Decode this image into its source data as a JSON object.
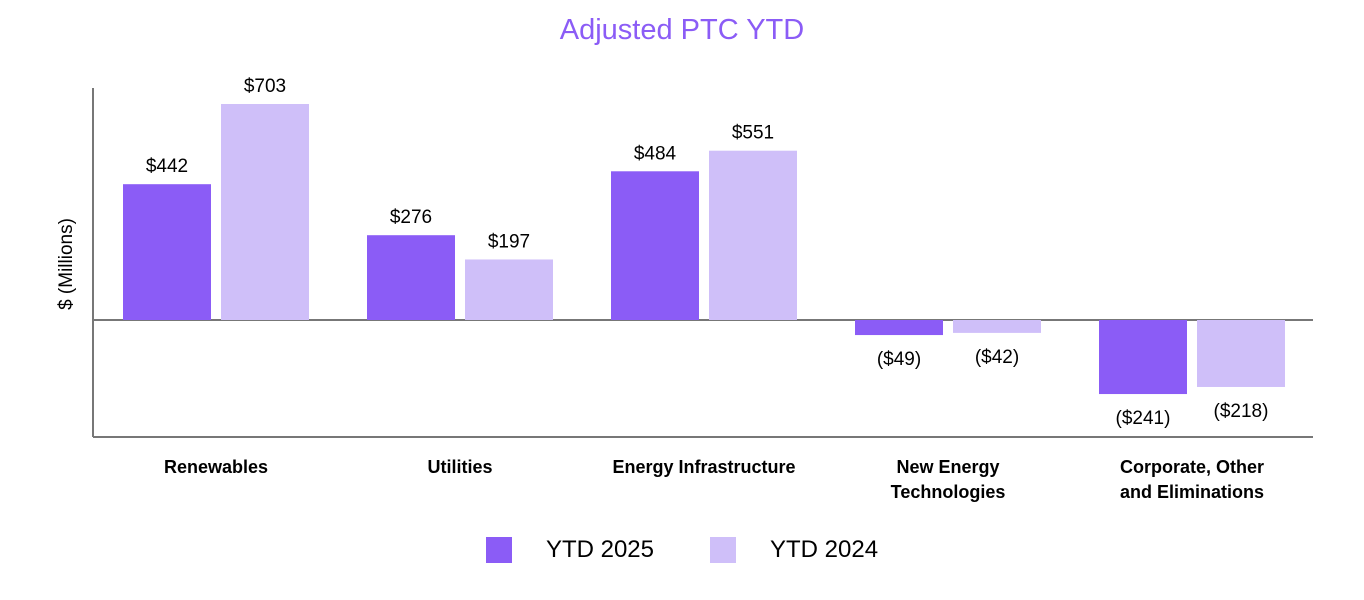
{
  "chart_data": {
    "type": "bar",
    "title": "Adjusted PTC YTD",
    "ylabel": "$ (Millions)",
    "xlabel": "",
    "categories": [
      [
        "Renewables"
      ],
      [
        "Utilities"
      ],
      [
        "Energy Infrastructure"
      ],
      [
        "New Energy",
        "Technologies"
      ],
      [
        "Corporate, Other",
        "and Eliminations"
      ]
    ],
    "series": [
      {
        "name": "YTD 2025",
        "color": "#8b5cf6",
        "values": [
          442,
          276,
          484,
          -49,
          -241
        ],
        "labels": [
          "$442",
          "$276",
          "$484",
          "($49)",
          "($241)"
        ]
      },
      {
        "name": "YTD 2024",
        "color": "#cfbff9",
        "values": [
          703,
          197,
          551,
          -42,
          -218
        ],
        "labels": [
          "$703",
          "$197",
          "$551",
          "($42)",
          "($218)"
        ]
      }
    ],
    "ylim": [
      -380,
      750
    ],
    "grid": false,
    "legend": "bottom-center"
  }
}
